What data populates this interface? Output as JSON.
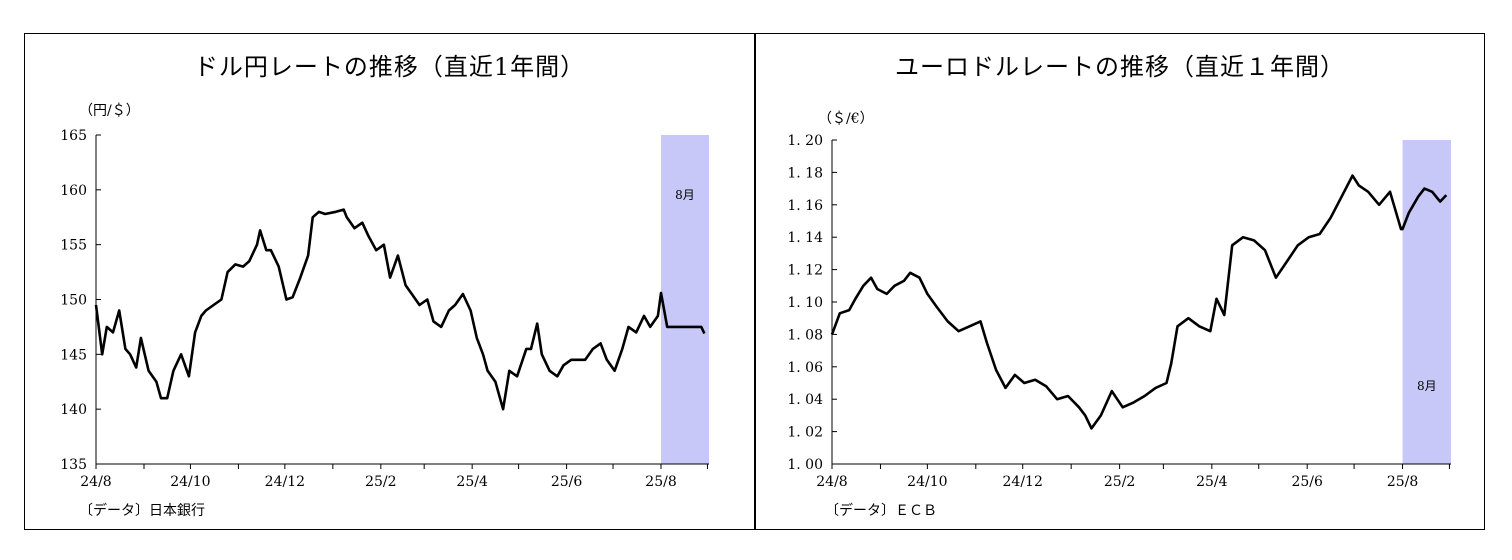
{
  "charts": [
    {
      "title": "ドル円レートの推移（直近1年間）",
      "unit": "（円/＄）",
      "source": "〔データ〕日本銀行",
      "highlight_label": "8月",
      "highlight_color": "#c8c8f8",
      "line_color": "#000000"
    },
    {
      "title": "ユーロドルレートの推移（直近１年間）",
      "unit": "（＄/€）",
      "source": "〔データ〕ＥＣＢ",
      "highlight_label": "8月",
      "highlight_color": "#c8c8f8",
      "line_color": "#000000"
    }
  ],
  "chart_data": [
    {
      "type": "line",
      "title": "ドル円レートの推移（直近1年間）",
      "ylabel": "（円/＄）",
      "ylim": [
        135,
        165
      ],
      "yticks": [
        135,
        140,
        145,
        150,
        155,
        160,
        165
      ],
      "ytick_labels": [
        "135",
        "140",
        "145",
        "150",
        "155",
        "160",
        "165"
      ],
      "xlim": [
        "2024-08-01",
        "2025-08-31"
      ],
      "xticks": [
        "2024-08-01",
        "2024-09-01",
        "2024-10-01",
        "2024-11-01",
        "2024-12-01",
        "2025-01-01",
        "2025-02-01",
        "2025-03-01",
        "2025-04-01",
        "2025-05-01",
        "2025-06-01",
        "2025-07-01",
        "2025-08-01",
        "2025-08-31"
      ],
      "xtick_labels": [
        "24/8",
        "",
        "24/10",
        "",
        "24/12",
        "",
        "25/2",
        "",
        "25/4",
        "",
        "25/6",
        "",
        "25/8",
        ""
      ],
      "highlight": {
        "from": "2025-08-01",
        "to": "2025-08-31",
        "label": "8月"
      },
      "x": [
        "2024-08-01",
        "2024-08-05",
        "2024-08-08",
        "2024-08-12",
        "2024-08-16",
        "2024-08-20",
        "2024-08-23",
        "2024-08-27",
        "2024-08-30",
        "2024-09-04",
        "2024-09-09",
        "2024-09-12",
        "2024-09-16",
        "2024-09-20",
        "2024-09-25",
        "2024-09-30",
        "2024-10-04",
        "2024-10-08",
        "2024-10-11",
        "2024-10-16",
        "2024-10-21",
        "2024-10-25",
        "2024-10-30",
        "2024-11-04",
        "2024-11-08",
        "2024-11-13",
        "2024-11-15",
        "2024-11-19",
        "2024-11-22",
        "2024-11-27",
        "2024-12-02",
        "2024-12-06",
        "2024-12-11",
        "2024-12-16",
        "2024-12-19",
        "2024-12-23",
        "2024-12-27",
        "2025-01-03",
        "2025-01-08",
        "2025-01-10",
        "2025-01-15",
        "2025-01-20",
        "2025-01-24",
        "2025-01-29",
        "2025-02-03",
        "2025-02-07",
        "2025-02-12",
        "2025-02-17",
        "2025-02-21",
        "2025-02-26",
        "2025-03-03",
        "2025-03-07",
        "2025-03-12",
        "2025-03-17",
        "2025-03-21",
        "2025-03-26",
        "2025-03-31",
        "2025-04-04",
        "2025-04-08",
        "2025-04-11",
        "2025-04-16",
        "2025-04-21",
        "2025-04-25",
        "2025-04-30",
        "2025-05-06",
        "2025-05-09",
        "2025-05-13",
        "2025-05-16",
        "2025-05-21",
        "2025-05-26",
        "2025-05-30",
        "2025-06-04",
        "2025-06-09",
        "2025-06-13",
        "2025-06-18",
        "2025-06-23",
        "2025-06-27",
        "2025-07-02",
        "2025-07-07",
        "2025-07-11",
        "2025-07-16",
        "2025-07-21",
        "2025-07-25",
        "2025-07-30",
        "2025-08-01",
        "2025-08-05",
        "2025-08-08",
        "2025-08-13",
        "2025-08-18",
        "2025-08-22",
        "2025-08-27",
        "2025-08-29"
      ],
      "series": [
        {
          "values": [
            149.5,
            145.0,
            147.5,
            147.0,
            149.0,
            145.5,
            145.0,
            143.8,
            146.5,
            143.5,
            142.5,
            141.0,
            141.0,
            143.5,
            145.0,
            143.0,
            147.0,
            148.5,
            149.0,
            149.5,
            150.0,
            152.5,
            153.2,
            153.0,
            153.5,
            155.0,
            156.3,
            154.5,
            154.5,
            153.0,
            150.0,
            150.2,
            152.0,
            154.0,
            157.5,
            158.0,
            157.8,
            158.0,
            158.2,
            157.5,
            156.5,
            157.0,
            155.8,
            154.5,
            155.0,
            152.0,
            154.0,
            151.3,
            150.5,
            149.5,
            150.0,
            148.0,
            147.5,
            149.0,
            149.5,
            150.5,
            149.0,
            146.5,
            145.0,
            143.5,
            142.5,
            140.0,
            143.5,
            143.0,
            145.5,
            145.5,
            147.8,
            145.0,
            143.5,
            143.0,
            144.0,
            144.5,
            144.5,
            144.5,
            145.5,
            146.0,
            144.5,
            143.5,
            145.5,
            147.5,
            147.0,
            148.5,
            147.5,
            148.5,
            150.6,
            147.5,
            147.5,
            147.5,
            147.5,
            147.5,
            147.5,
            146.9
          ]
        }
      ]
    },
    {
      "type": "line",
      "title": "ユーロドルレートの推移（直近１年間）",
      "ylabel": "（＄/€）",
      "ylim": [
        1.0,
        1.2
      ],
      "yticks": [
        1.0,
        1.02,
        1.04,
        1.06,
        1.08,
        1.1,
        1.12,
        1.14,
        1.16,
        1.18,
        1.2
      ],
      "ytick_labels": [
        "1. 00",
        "1. 02",
        "1. 04",
        "1. 06",
        "1. 08",
        "1. 10",
        "1. 12",
        "1. 14",
        "1. 16",
        "1. 18",
        "1. 20"
      ],
      "xlim": [
        "2024-08-01",
        "2025-08-31"
      ],
      "xticks": [
        "2024-08-01",
        "2024-09-01",
        "2024-10-01",
        "2024-11-01",
        "2024-12-01",
        "2025-01-01",
        "2025-02-01",
        "2025-03-01",
        "2025-04-01",
        "2025-05-01",
        "2025-06-01",
        "2025-07-01",
        "2025-08-01",
        "2025-08-31"
      ],
      "xtick_labels": [
        "24/8",
        "",
        "24/10",
        "",
        "24/12",
        "",
        "25/2",
        "",
        "25/4",
        "",
        "25/6",
        "",
        "25/8",
        ""
      ],
      "highlight": {
        "from": "2025-08-01",
        "to": "2025-08-31",
        "label": "8月"
      },
      "x": [
        "2024-08-01",
        "2024-08-06",
        "2024-08-12",
        "2024-08-16",
        "2024-08-21",
        "2024-08-26",
        "2024-08-30",
        "2024-09-05",
        "2024-09-10",
        "2024-09-16",
        "2024-09-20",
        "2024-09-26",
        "2024-10-01",
        "2024-10-07",
        "2024-10-14",
        "2024-10-21",
        "2024-10-28",
        "2024-11-04",
        "2024-11-08",
        "2024-11-14",
        "2024-11-20",
        "2024-11-26",
        "2024-12-02",
        "2024-12-09",
        "2024-12-16",
        "2024-12-23",
        "2024-12-30",
        "2025-01-06",
        "2025-01-10",
        "2025-01-14",
        "2025-01-20",
        "2025-01-27",
        "2025-02-03",
        "2025-02-10",
        "2025-02-17",
        "2025-02-24",
        "2025-03-03",
        "2025-03-06",
        "2025-03-10",
        "2025-03-17",
        "2025-03-24",
        "2025-03-31",
        "2025-04-04",
        "2025-04-09",
        "2025-04-14",
        "2025-04-21",
        "2025-04-28",
        "2025-05-05",
        "2025-05-12",
        "2025-05-19",
        "2025-05-26",
        "2025-06-02",
        "2025-06-09",
        "2025-06-16",
        "2025-06-23",
        "2025-06-30",
        "2025-07-04",
        "2025-07-10",
        "2025-07-17",
        "2025-07-24",
        "2025-07-31",
        "2025-08-01",
        "2025-08-05",
        "2025-08-11",
        "2025-08-15",
        "2025-08-20",
        "2025-08-25",
        "2025-08-29"
      ],
      "series": [
        {
          "values": [
            1.08,
            1.093,
            1.095,
            1.102,
            1.11,
            1.115,
            1.108,
            1.105,
            1.11,
            1.113,
            1.118,
            1.115,
            1.105,
            1.097,
            1.088,
            1.082,
            1.085,
            1.088,
            1.075,
            1.058,
            1.047,
            1.055,
            1.05,
            1.052,
            1.048,
            1.04,
            1.042,
            1.035,
            1.03,
            1.022,
            1.03,
            1.045,
            1.035,
            1.038,
            1.042,
            1.047,
            1.05,
            1.062,
            1.085,
            1.09,
            1.085,
            1.082,
            1.102,
            1.092,
            1.135,
            1.14,
            1.138,
            1.132,
            1.115,
            1.125,
            1.135,
            1.14,
            1.142,
            1.152,
            1.165,
            1.178,
            1.172,
            1.168,
            1.16,
            1.168,
            1.145,
            1.145,
            1.155,
            1.165,
            1.17,
            1.168,
            1.162,
            1.166
          ]
        }
      ]
    }
  ]
}
